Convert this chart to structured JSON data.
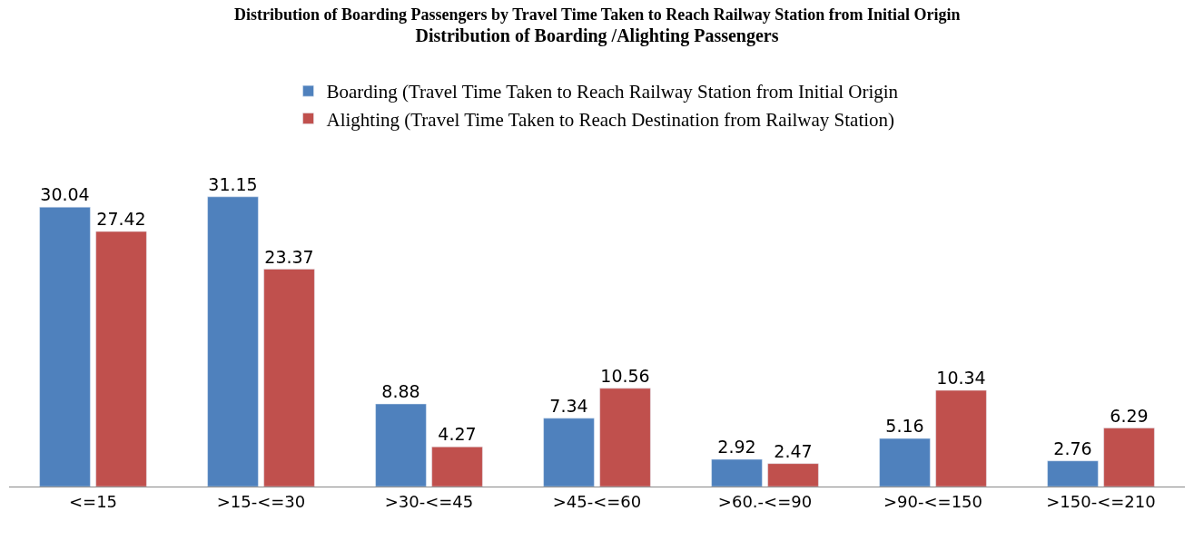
{
  "chart_data": {
    "type": "bar",
    "title": "Distribution of Boarding /Alighting Passengers",
    "annotations": [
      "Distribution of Boarding Passengers by Travel Time Taken to Reach Railway Station from Initial Origin"
    ],
    "categories": [
      "<=15",
      ">15-<=30",
      ">30-<=45",
      ">45-<=60",
      ">60.-<=90",
      ">90-<=150",
      ">150-<=210"
    ],
    "series": [
      {
        "name": "Boarding (Travel Time Taken to Reach Railway Station from Initial Origin",
        "color": "#4f81bd",
        "values": [
          30.04,
          31.15,
          8.88,
          7.34,
          2.92,
          5.16,
          2.76
        ]
      },
      {
        "name": "Alighting (Travel Time Taken to Reach Destination from Railway Station)",
        "color": "#c0504d",
        "values": [
          27.42,
          23.37,
          4.27,
          10.56,
          2.47,
          10.34,
          6.29
        ]
      }
    ],
    "data_labels": true,
    "legend": "top"
  }
}
